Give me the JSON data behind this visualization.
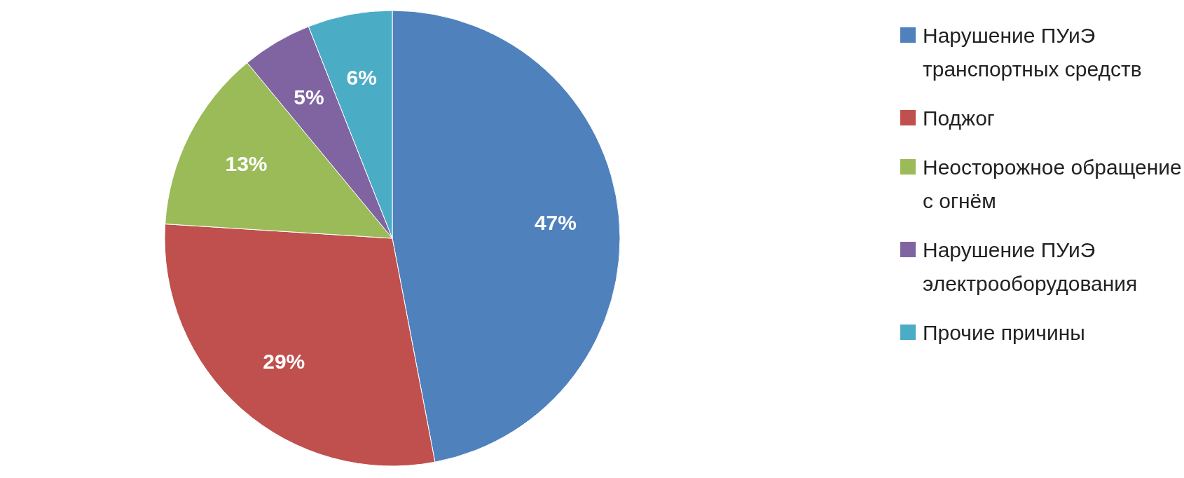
{
  "chart_data": {
    "type": "pie",
    "categories": [
      "Нарушение ПУиЭ транспортных средств",
      "Поджог",
      "Неосторожное обращение с огнём",
      "Нарушение ПУиЭ электрооборудования",
      "Прочие причины"
    ],
    "values": [
      47,
      29,
      13,
      5,
      6
    ],
    "value_labels": [
      "47%",
      "29%",
      "13%",
      "5%",
      "6%"
    ],
    "colors": [
      "#4f81bd",
      "#c0504d",
      "#9bbb59",
      "#8064a2",
      "#4bacc6"
    ],
    "legend": "right"
  }
}
